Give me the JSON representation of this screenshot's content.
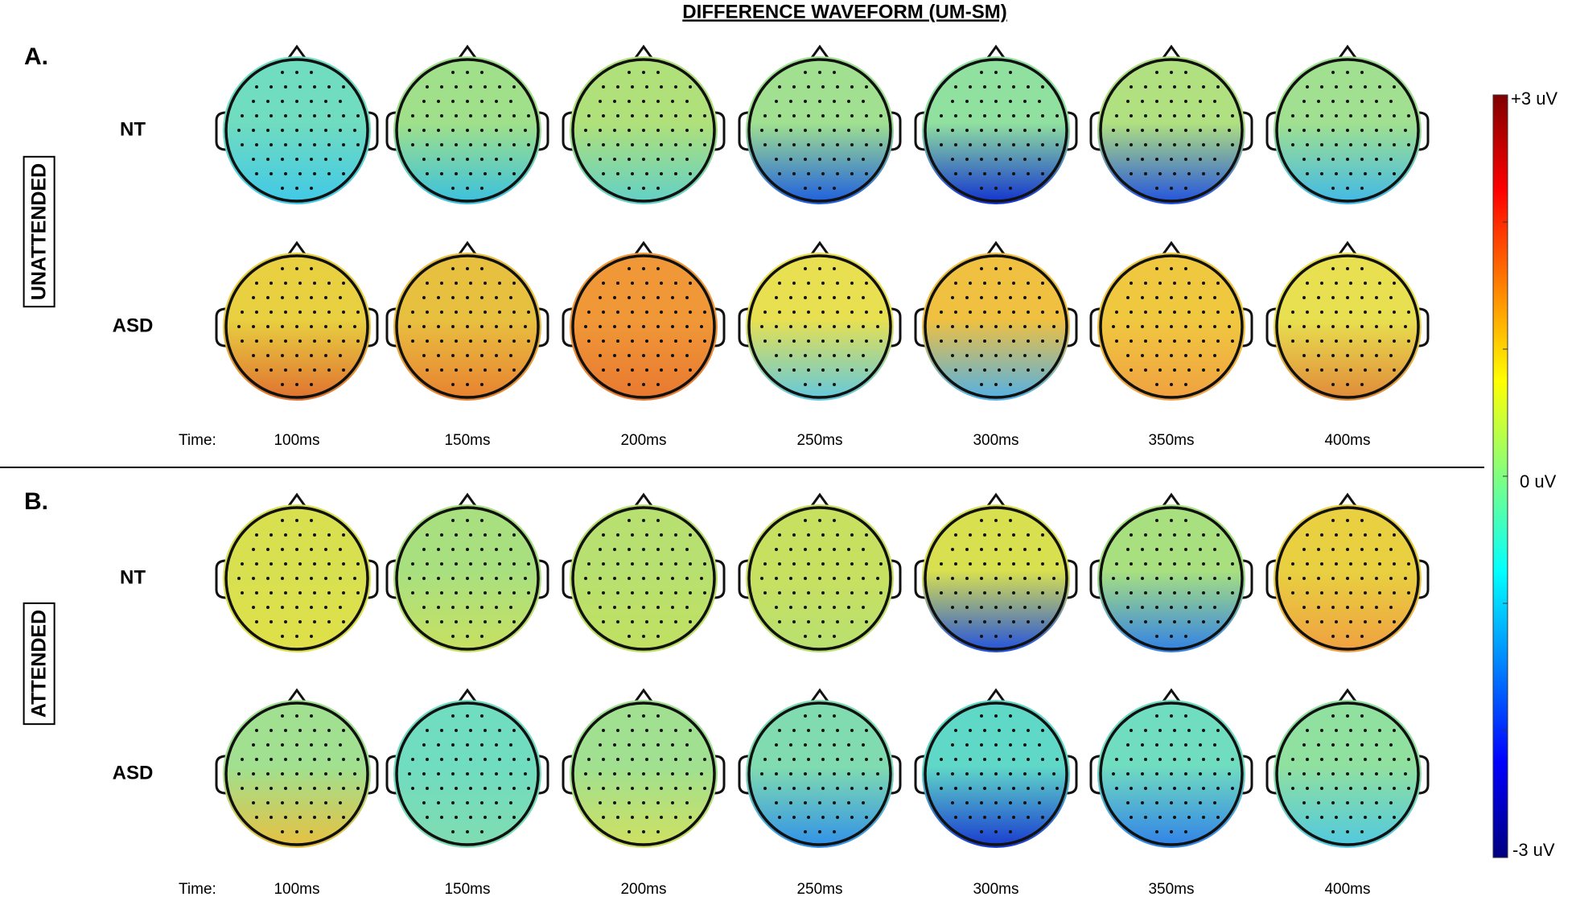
{
  "title": "DIFFERENCE WAVEFORM (UM-SM)",
  "panels": [
    {
      "label": "A.",
      "condition": "UNATTENDED",
      "time_label": "Time:",
      "times": [
        "100ms",
        "150ms",
        "200ms",
        "250ms",
        "300ms",
        "350ms",
        "400ms"
      ],
      "rows": [
        {
          "group": "NT",
          "maps": [
            [
              "#70dcc0",
              "#40c8e8"
            ],
            [
              "#a0e08a",
              "#38c0e0"
            ],
            [
              "#b0e07a",
              "#60d0c8"
            ],
            [
              "#a0e090",
              "#1c5ce0"
            ],
            [
              "#90e0a0",
              "#1030d0"
            ],
            [
              "#b0e080",
              "#2050e0"
            ],
            [
              "#a0e090",
              "#40b8e8"
            ]
          ]
        },
        {
          "group": "ASD",
          "maps": [
            [
              "#e8d040",
              "#e07030"
            ],
            [
              "#e8c040",
              "#e88030"
            ],
            [
              "#f09838",
              "#e87830"
            ],
            [
              "#e8e050",
              "#60c8e0"
            ],
            [
              "#f0c040",
              "#50b0e8"
            ],
            [
              "#f0c840",
              "#f0a040"
            ],
            [
              "#e8e050",
              "#e08838"
            ]
          ]
        }
      ]
    },
    {
      "label": "B.",
      "condition": "ATTENDED",
      "time_label": "Time:",
      "times": [
        "100ms",
        "150ms",
        "200ms",
        "250ms",
        "300ms",
        "350ms",
        "400ms"
      ],
      "rows": [
        {
          "group": "NT",
          "maps": [
            [
              "#d8e050",
              "#e0e048"
            ],
            [
              "#a8e080",
              "#c8e060"
            ],
            [
              "#b8e070",
              "#c0e060"
            ],
            [
              "#c8e060",
              "#b8e070"
            ],
            [
              "#d8e050",
              "#2050e0"
            ],
            [
              "#a8e080",
              "#3080e8"
            ],
            [
              "#e8d040",
              "#f0a040"
            ]
          ]
        },
        {
          "group": "ASD",
          "maps": [
            [
              "#a0e090",
              "#e8c040"
            ],
            [
              "#70dcc0",
              "#80dcb0"
            ],
            [
              "#a0e090",
              "#d0e060"
            ],
            [
              "#80dcb0",
              "#3090e8"
            ],
            [
              "#60d8c8",
              "#1838d0"
            ],
            [
              "#70dcc0",
              "#3080e8"
            ],
            [
              "#90e0a0",
              "#50c8e0"
            ]
          ]
        }
      ]
    }
  ],
  "colorbar": {
    "max_label": "+3 uV",
    "mid_label": "0 uV",
    "min_label": "-3 uV",
    "colors": [
      "#800000",
      "#ff0000",
      "#ff8000",
      "#ffff00",
      "#80ff80",
      "#00ffff",
      "#0080ff",
      "#0000ff",
      "#000080"
    ]
  }
}
